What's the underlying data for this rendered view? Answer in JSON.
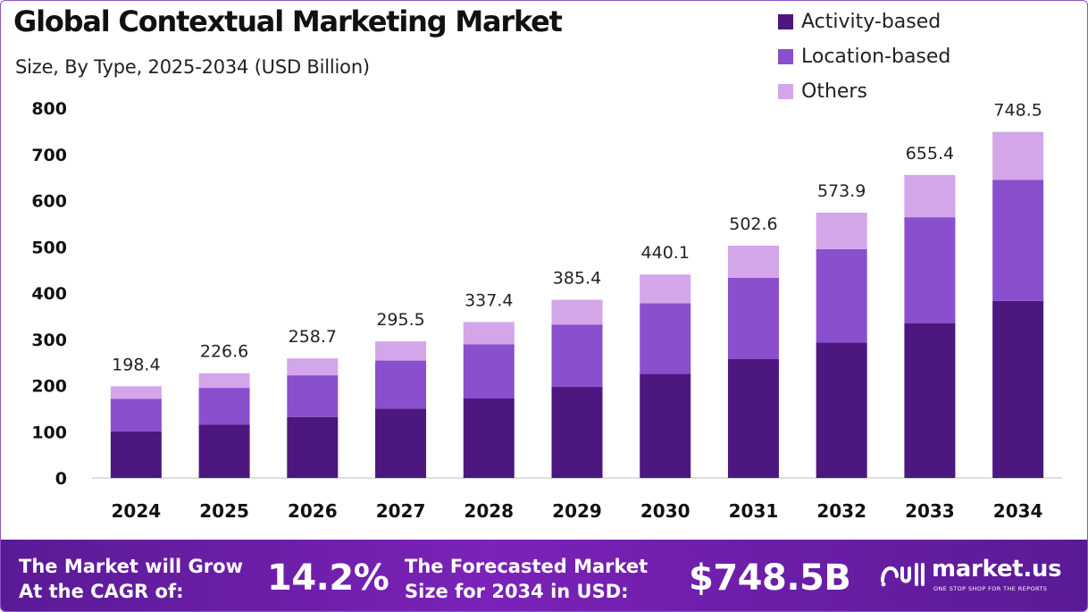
{
  "chart_data": {
    "type": "bar",
    "stacked": true,
    "title": "Global Contextual Marketing Market",
    "subtitle": "Size, By Type, 2025-2034 (USD Billion)",
    "xlabel": "",
    "ylabel": "",
    "ylim": [
      0,
      800
    ],
    "yticks": [
      "0",
      "100",
      "200",
      "300",
      "400",
      "500",
      "600",
      "700",
      "800"
    ],
    "categories": [
      "2024",
      "2025",
      "2026",
      "2027",
      "2028",
      "2029",
      "2030",
      "2031",
      "2032",
      "2033",
      "2034"
    ],
    "series": [
      {
        "name": "Activity-based",
        "color": "#4d1780",
        "values": [
          101,
          115,
          132,
          150,
          172,
          197,
          225,
          257,
          293,
          335,
          383
        ]
      },
      {
        "name": "Location-based",
        "color": "#8a4fcc",
        "values": [
          70,
          80,
          90,
          104,
          117,
          135,
          153,
          176,
          202,
          229,
          262
        ]
      },
      {
        "name": "Others",
        "color": "#d3a6ea",
        "values": [
          27.4,
          31.6,
          36.7,
          41.5,
          48.4,
          53.4,
          62.1,
          69.6,
          78.9,
          91.4,
          103.5
        ]
      }
    ],
    "totals": [
      "198.4",
      "226.6",
      "258.7",
      "295.5",
      "337.4",
      "385.4",
      "440.1",
      "502.6",
      "573.9",
      "655.4",
      "748.5"
    ],
    "legend_position": "top-right",
    "grid": false
  },
  "footer": {
    "cagr_label_line1": "The Market will Grow",
    "cagr_label_line2": "At the CAGR of:",
    "cagr_value": "14.2%",
    "forecast_label_line1": "The Forecasted Market",
    "forecast_label_line2": "Size for 2034 in USD:",
    "forecast_value": "$748.5B",
    "brand_name": "market.us",
    "brand_tagline": "ONE STOP SHOP FOR THE REPORTS",
    "gradient_start": "#5a1a96",
    "gradient_mid": "#7b22b8"
  }
}
